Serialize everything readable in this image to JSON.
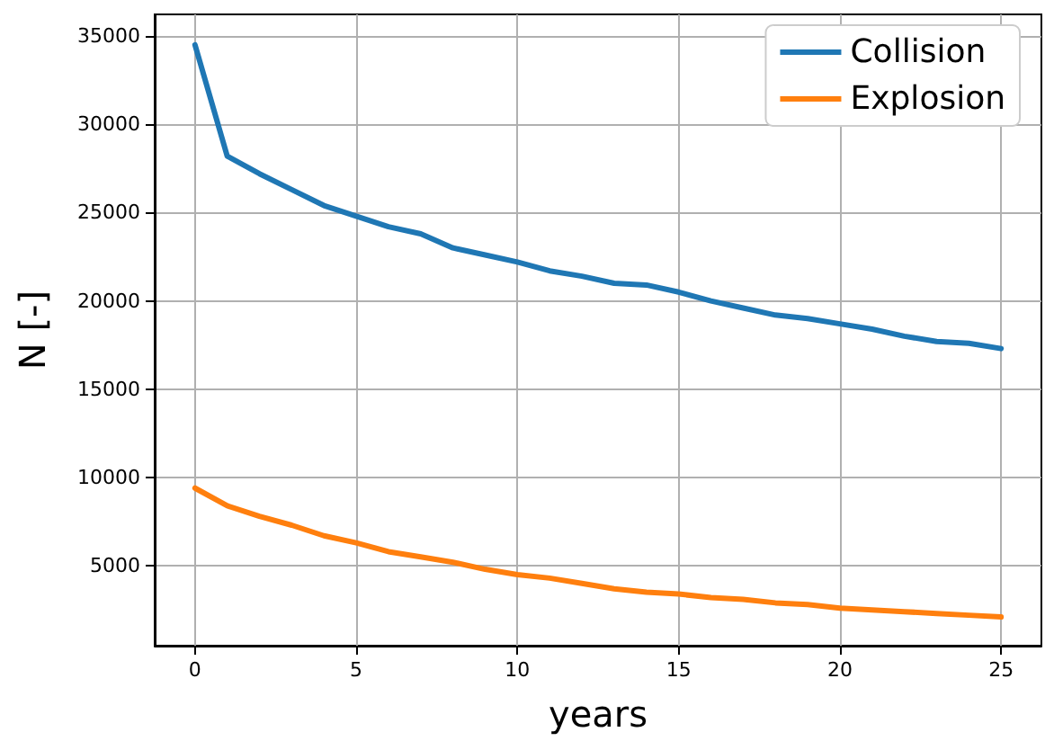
{
  "chart_data": {
    "type": "line",
    "xlabel": "years",
    "ylabel": "N [-]",
    "x": [
      0,
      1,
      2,
      3,
      4,
      5,
      6,
      7,
      8,
      9,
      10,
      11,
      12,
      13,
      14,
      15,
      16,
      17,
      18,
      19,
      20,
      21,
      22,
      23,
      24,
      25
    ],
    "series": [
      {
        "name": "Collision",
        "color": "#1f77b4",
        "values": [
          34500,
          28200,
          27200,
          26300,
          25400,
          24800,
          24200,
          23800,
          23000,
          22600,
          22200,
          21700,
          21400,
          21000,
          20900,
          20500,
          20000,
          19600,
          19200,
          19000,
          18700,
          18400,
          18000,
          17700,
          17600,
          17300
        ]
      },
      {
        "name": "Explosion",
        "color": "#ff7f0e",
        "values": [
          9400,
          8400,
          7800,
          7300,
          6700,
          6300,
          5800,
          5500,
          5200,
          4800,
          4500,
          4300,
          4000,
          3700,
          3500,
          3400,
          3200,
          3100,
          2900,
          2800,
          2600,
          2500,
          2400,
          2300,
          2200,
          2100
        ]
      }
    ],
    "xlim": [
      -1.25,
      26.25
    ],
    "xticks": [
      0,
      5,
      10,
      15,
      20,
      25
    ],
    "ylim": [
      475,
      36225
    ],
    "yticks": [
      5000,
      10000,
      15000,
      20000,
      25000,
      30000,
      35000
    ],
    "grid": true,
    "legend": "top right",
    "marker": "none",
    "line_style": "solid"
  }
}
